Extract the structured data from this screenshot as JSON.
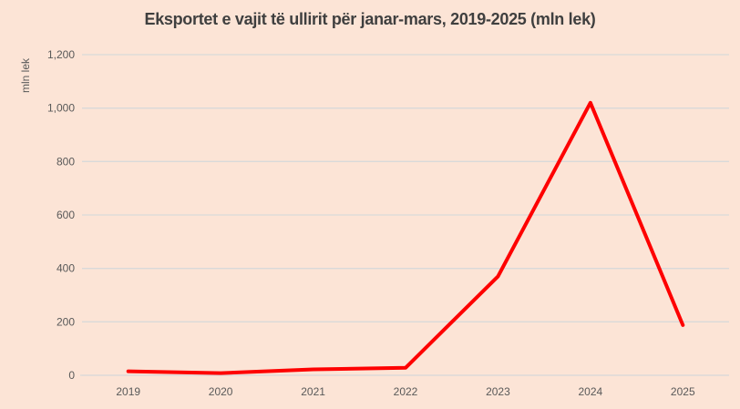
{
  "chart_data": {
    "type": "line",
    "title": "Eksportet e vajit të ullirit për janar-mars, 2019-2025 (mln lek)",
    "ylabel": "mln lek",
    "xlabel": "",
    "categories": [
      "2019",
      "2020",
      "2021",
      "2022",
      "2023",
      "2024",
      "2025"
    ],
    "series": [
      {
        "name": "Eksportet e vajit te ullirit (mln lek)",
        "values": [
          15,
          8,
          22,
          28,
          370,
          1020,
          188
        ]
      }
    ],
    "ylim": [
      0,
      1200
    ],
    "ytick_interval": 200,
    "ytick_labels": [
      "0",
      "200",
      "400",
      "600",
      "800",
      "1,000",
      "1,200"
    ],
    "grid": true,
    "legend_position": "none",
    "colors": {
      "line": "#fe0000",
      "background": "#fce4d6",
      "gridline": "#d9d9d9",
      "axis_line": "#d9d9d9",
      "title_text": "#3f3f3f",
      "tick_text": "#595959"
    }
  }
}
